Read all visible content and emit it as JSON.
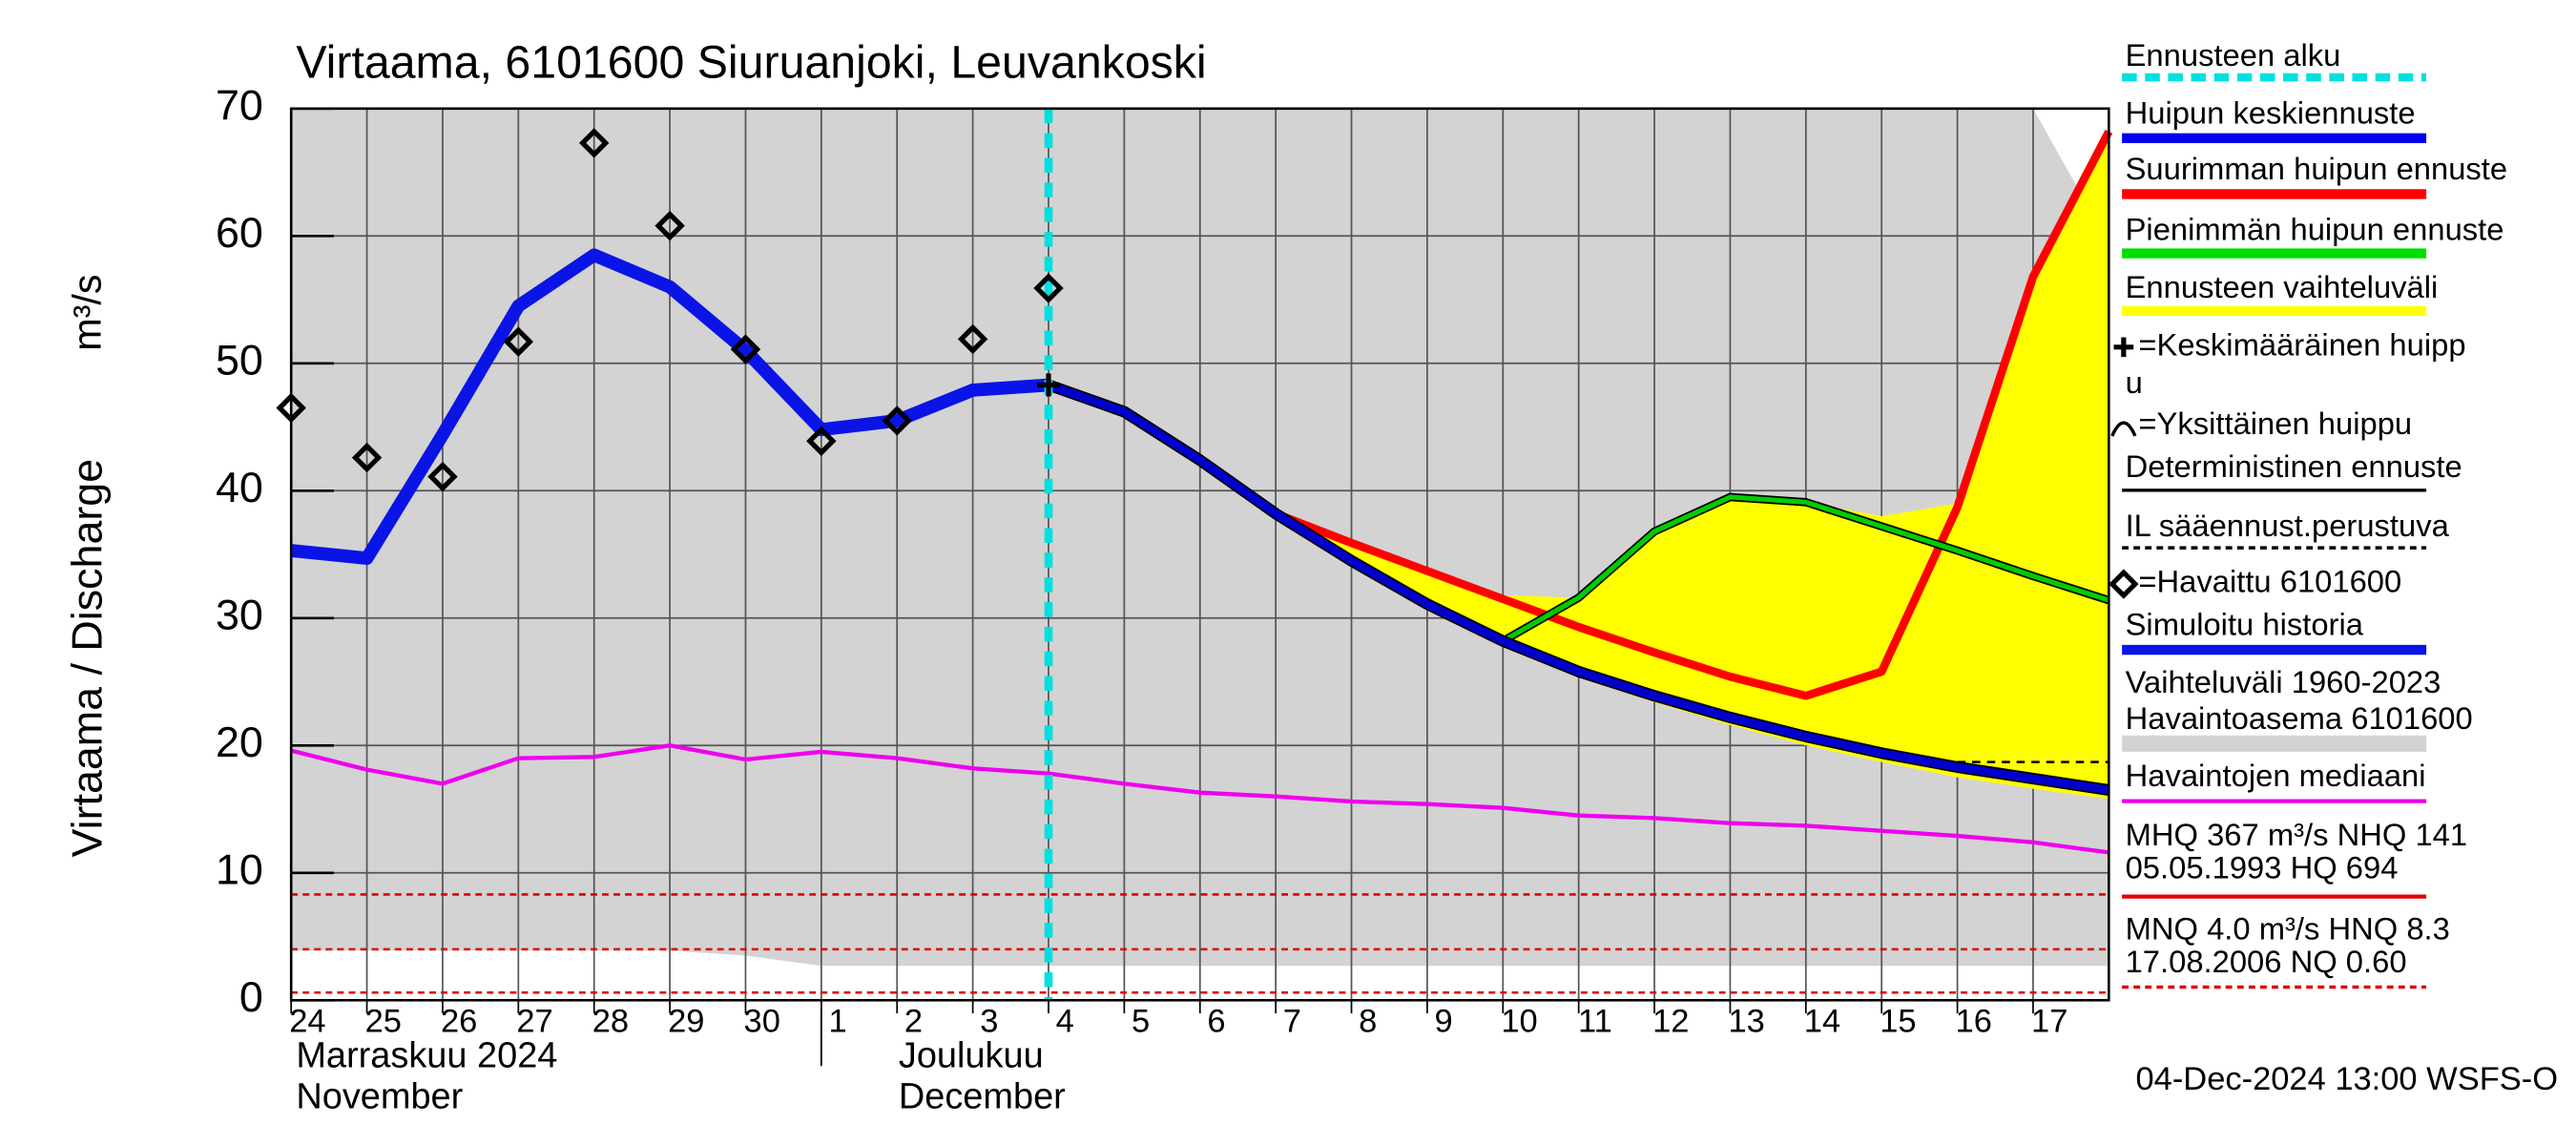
{
  "chart_data": {
    "type": "line",
    "title": "Virtaama, 6101600 Siuruanjoki, Leuvankoski",
    "ylabel": "Virtaama / Discharge",
    "yunit": "m³/s",
    "ylim": [
      0,
      70
    ],
    "yticks": [
      0,
      10,
      20,
      30,
      40,
      50,
      60,
      70
    ],
    "xlim": [
      0,
      24
    ],
    "xticks": [
      {
        "value": 0,
        "label": "24"
      },
      {
        "value": 1,
        "label": "25"
      },
      {
        "value": 2,
        "label": "26"
      },
      {
        "value": 3,
        "label": "27"
      },
      {
        "value": 4,
        "label": "28"
      },
      {
        "value": 5,
        "label": "29"
      },
      {
        "value": 6,
        "label": "30"
      },
      {
        "value": 7,
        "label": "1"
      },
      {
        "value": 8,
        "label": "2"
      },
      {
        "value": 9,
        "label": "3"
      },
      {
        "value": 10,
        "label": "4"
      },
      {
        "value": 11,
        "label": "5"
      },
      {
        "value": 12,
        "label": "6"
      },
      {
        "value": 13,
        "label": "7"
      },
      {
        "value": 14,
        "label": "8"
      },
      {
        "value": 15,
        "label": "9"
      },
      {
        "value": 16,
        "label": "10"
      },
      {
        "value": 17,
        "label": "11"
      },
      {
        "value": 18,
        "label": "12"
      },
      {
        "value": 19,
        "label": "13"
      },
      {
        "value": 20,
        "label": "14"
      },
      {
        "value": 21,
        "label": "15"
      },
      {
        "value": 22,
        "label": "16"
      },
      {
        "value": 23,
        "label": "17"
      }
    ],
    "months": [
      {
        "value": 0,
        "lines": [
          "Marraskuu 2024",
          "November"
        ]
      },
      {
        "value": 7,
        "lines": [
          "Joulukuu",
          "December"
        ]
      }
    ],
    "x": [
      0,
      1,
      2,
      3,
      4,
      5,
      6,
      7,
      8,
      9,
      10,
      11,
      12,
      13,
      14,
      15,
      16,
      17,
      18,
      19,
      20,
      21,
      22,
      23,
      24
    ],
    "grid": true,
    "forecast_start": 10,
    "forecast_start_color": "#00e0e0",
    "bands": [
      {
        "color": "#d3d3d3",
        "upper": [
          70,
          70,
          70,
          70,
          70,
          70,
          70,
          70,
          70,
          70,
          70,
          70,
          70,
          70,
          70,
          70,
          70,
          70,
          70,
          70,
          70,
          70,
          70,
          70,
          59.4
        ],
        "lower": [
          3.9,
          3.9,
          3.9,
          3.9,
          3.9,
          3.9,
          3.5,
          2.7,
          2.7,
          2.7,
          2.7,
          2.7,
          2.7,
          2.7,
          2.7,
          2.7,
          2.7,
          2.7,
          2.7,
          2.7,
          2.7,
          2.7,
          2.7,
          2.7,
          2.7
        ]
      },
      {
        "color": "#ffff00",
        "upper": [
          null,
          null,
          null,
          null,
          null,
          null,
          null,
          null,
          null,
          null,
          48.3,
          46.2,
          42.4,
          38.5,
          35.9,
          33.7,
          31.8,
          31.6,
          36.8,
          39.5,
          39.1,
          38.0,
          39.0,
          56.8,
          68.2
        ],
        "lower": [
          null,
          null,
          null,
          null,
          null,
          null,
          null,
          null,
          null,
          null,
          48.3,
          46.0,
          42.0,
          37.8,
          34.0,
          30.6,
          27.8,
          25.4,
          23.4,
          21.6,
          20.0,
          18.7,
          17.5,
          16.6,
          15.8
        ]
      }
    ],
    "reference_lines": [
      {
        "value": 8.3,
        "color": "#e00000"
      },
      {
        "value": 4.0,
        "color": "#e00000"
      },
      {
        "value": 0.6,
        "color": "#e00000"
      }
    ],
    "series": [
      {
        "color": "#ee00ee",
        "width": 2.5,
        "values": [
          19.6,
          18.1,
          17.0,
          19.0,
          19.1,
          20.0,
          18.9,
          19.5,
          19.0,
          18.2,
          17.8,
          17.0,
          16.3,
          16.0,
          15.6,
          15.4,
          15.1,
          14.5,
          14.3,
          13.9,
          13.7,
          13.3,
          12.9,
          12.4,
          11.6
        ]
      },
      {
        "color": "#0a14e6",
        "width": 8,
        "values": [
          35.3,
          34.7,
          44.4,
          54.5,
          58.5,
          56.0,
          51.0,
          44.8,
          45.5,
          47.9,
          48.3,
          null,
          null,
          null,
          null,
          null,
          null,
          null,
          null,
          null,
          null,
          null,
          null,
          null,
          null
        ]
      },
      {
        "color": "#ff0000",
        "width": 5,
        "values": [
          null,
          null,
          null,
          null,
          null,
          null,
          null,
          null,
          null,
          null,
          48.3,
          46.2,
          42.4,
          38.2,
          35.9,
          33.7,
          31.5,
          29.3,
          27.3,
          25.4,
          23.9,
          25.8,
          38.7,
          56.8,
          68.2
        ]
      },
      {
        "color": "#00cc00",
        "width": 3,
        "values": [
          null,
          null,
          null,
          null,
          null,
          null,
          null,
          null,
          null,
          null,
          null,
          null,
          null,
          null,
          null,
          null,
          28.2,
          31.6,
          36.8,
          39.5,
          39.1,
          37.2,
          35.3,
          33.3,
          31.4
        ]
      },
      {
        "color": "#0000cc",
        "width": 5,
        "values": [
          null,
          null,
          null,
          null,
          null,
          null,
          null,
          null,
          null,
          null,
          48.3,
          46.2,
          42.4,
          38.2,
          34.5,
          31.1,
          28.2,
          25.8,
          23.9,
          22.2,
          20.7,
          19.4,
          18.3,
          17.4,
          16.5
        ]
      },
      {
        "color": "#000000",
        "width": 1.5,
        "dashed": true,
        "values": [
          null,
          null,
          null,
          null,
          null,
          null,
          null,
          null,
          null,
          null,
          null,
          null,
          null,
          null,
          null,
          null,
          null,
          null,
          null,
          null,
          null,
          null,
          18.7,
          18.7,
          18.7
        ]
      }
    ],
    "observed": {
      "color": "#000000",
      "values": [
        46.5,
        42.6,
        41.1,
        51.7,
        67.3,
        60.8,
        51.1,
        43.9,
        45.5,
        51.9,
        55.9,
        null,
        null,
        null,
        null,
        null,
        null,
        null,
        null,
        null,
        null,
        null,
        null,
        null,
        null
      ]
    },
    "mean_peak": {
      "x": 10,
      "y": 48.3
    },
    "legend": [
      {
        "lines": [
          "Ennusteen alku"
        ],
        "swatch": "dash",
        "color": "#00e0e0"
      },
      {
        "lines": [
          "Huipun keskiennuste"
        ],
        "swatch": "line",
        "color": "#0000ee"
      },
      {
        "lines": [
          "Suurimman huipun ennuste"
        ],
        "swatch": "line",
        "color": "#ff0000"
      },
      {
        "lines": [
          "Pienimmän huipun ennuste"
        ],
        "swatch": "line",
        "color": "#00dd00"
      },
      {
        "lines": [
          "Ennusteen vaihteluväli"
        ],
        "swatch": "line",
        "color": "#ffff00"
      },
      {
        "lines": [
          "=Keskimääräinen huipp",
          "u"
        ],
        "symbol": "cross"
      },
      {
        "lines": [
          "=Yksittäinen huippu"
        ],
        "symbol": "arc"
      },
      {
        "lines": [
          "Deterministinen ennuste"
        ],
        "swatch": "thin",
        "color": "#000000"
      },
      {
        "lines": [
          "IL sääennust.perustuva"
        ],
        "swatch": "thindash",
        "color": "#000000"
      },
      {
        "lines": [
          "=Havaittu 6101600"
        ],
        "symbol": "diamond"
      },
      {
        "lines": [
          "Simuloitu historia"
        ],
        "swatch": "line",
        "color": "#0a14e6"
      },
      {
        "lines": [
          "Vaihteluväli 1960-2023",
          " Havaintoasema 6101600"
        ],
        "swatch": "band",
        "color": "#d3d3d3"
      },
      {
        "lines": [
          "Havaintojen mediaani"
        ],
        "swatch": "mid",
        "color": "#ee00ee"
      },
      {
        "lines": [
          "MHQ  367 m³/s NHQ  141",
          "05.05.1993 HQ  694"
        ],
        "swatch": "mid",
        "color": "#e00000"
      },
      {
        "lines": [
          "MNQ  4.0 m³/s HNQ  8.3",
          "17.08.2006 NQ 0.60"
        ],
        "swatch": "middash",
        "color": "#e00000"
      }
    ],
    "footer": "04-Dec-2024 13:00 WSFS-O"
  }
}
